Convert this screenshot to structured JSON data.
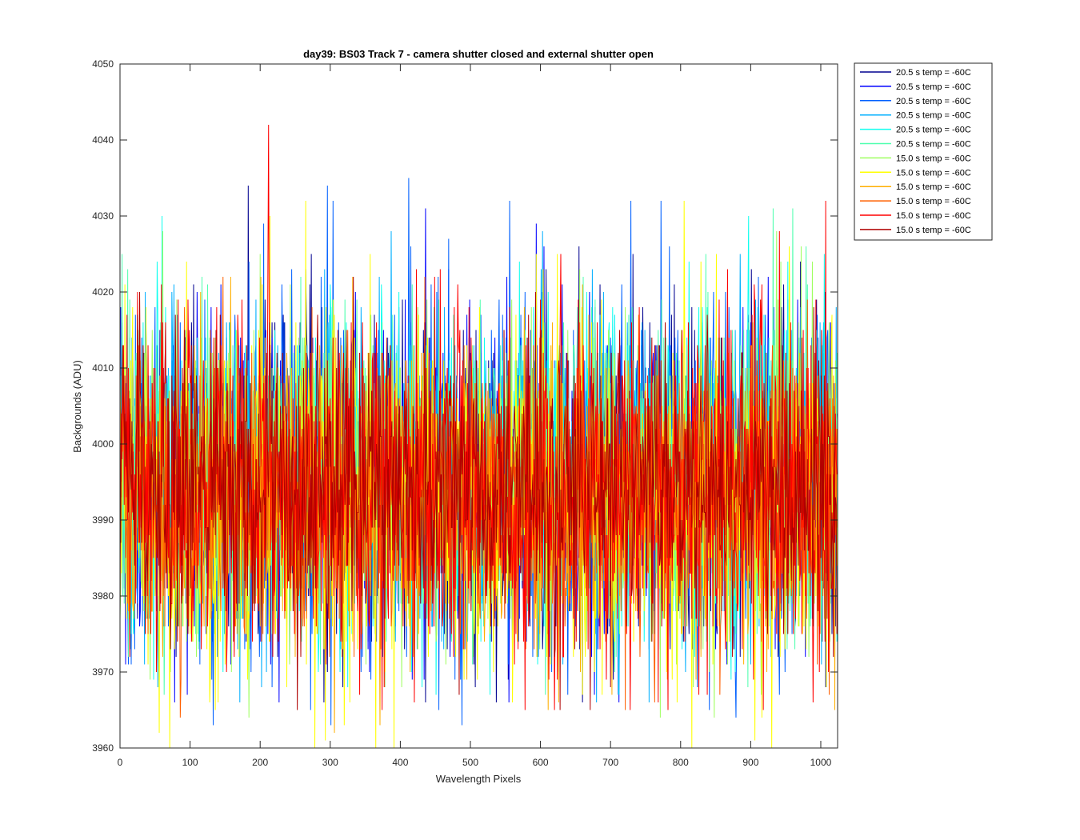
{
  "chart_data": {
    "type": "line",
    "title": "day39: BS03  Track 7 - camera shutter closed and external shutter open",
    "xlabel": "Wavelength Pixels",
    "ylabel": "Backgrounds (ADU)",
    "xlim": [
      0,
      1024
    ],
    "ylim": [
      3960,
      4050
    ],
    "xticks": [
      0,
      100,
      200,
      300,
      400,
      500,
      600,
      700,
      800,
      900,
      1000
    ],
    "yticks": [
      3960,
      3970,
      3980,
      3990,
      4000,
      4010,
      4020,
      4030,
      4040,
      4050
    ],
    "xtick_labels": [
      "0",
      "100",
      "200",
      "300",
      "400",
      "500",
      "600",
      "700",
      "800",
      "900",
      "1000"
    ],
    "ytick_labels": [
      "3960",
      "3970",
      "3980",
      "3990",
      "4000",
      "4010",
      "4020",
      "4030",
      "4040",
      "4050"
    ],
    "grid": false,
    "legend_position": "outside-top-right",
    "x_range": [
      0,
      1023
    ],
    "series": [
      {
        "name": "20.5 s temp = -60C",
        "color": "#00008F",
        "mean": 3995,
        "range": [
          3966,
          4034
        ],
        "peaks": [
          [
            183,
            4034
          ]
        ]
      },
      {
        "name": "20.5 s temp = -60C",
        "color": "#0000FF",
        "mean": 3995,
        "range": [
          3966,
          4031
        ],
        "peaks": [
          [
            436,
            4031
          ]
        ]
      },
      {
        "name": "20.5 s temp = -60C",
        "color": "#0060FF",
        "mean": 3995,
        "range": [
          3963,
          4035
        ],
        "peaks": [
          [
            412,
            4035
          ],
          [
            556,
            4032
          ],
          [
            133,
            3963
          ]
        ]
      },
      {
        "name": "20.5 s temp = -60C",
        "color": "#00AFFF",
        "mean": 3996,
        "range": [
          3966,
          4028
        ],
        "peaks": [
          [
            755,
            3966
          ]
        ]
      },
      {
        "name": "20.5 s temp = -60C",
        "color": "#10FFEF",
        "mean": 3996,
        "range": [
          3967,
          4030
        ],
        "peaks": [
          [
            60,
            4030
          ],
          [
            897,
            4030
          ]
        ]
      },
      {
        "name": "20.5 s temp = -60C",
        "color": "#50FFAF",
        "mean": 3996,
        "range": [
          3967,
          4031
        ],
        "peaks": [
          [
            932,
            4031
          ],
          [
            960,
            4031
          ]
        ]
      },
      {
        "name": "15.0 s temp = -60C",
        "color": "#9FFF60",
        "mean": 3994,
        "range": [
          3964,
          4028
        ],
        "peaks": [
          [
            848,
            3964
          ]
        ]
      },
      {
        "name": "15.0 s temp = -60C",
        "color": "#FFFF00",
        "mean": 3993,
        "range": [
          3960,
          4032
        ],
        "peaks": [
          [
            265,
            4032
          ],
          [
            365,
            3960
          ],
          [
            56,
            3962
          ]
        ]
      },
      {
        "name": "15.0 s temp = -60C",
        "color": "#FFAF00",
        "mean": 3993,
        "range": [
          3962,
          4022
        ],
        "peaks": [
          [
            1020,
            3965
          ]
        ]
      },
      {
        "name": "15.0 s temp = -60C",
        "color": "#FF6000",
        "mean": 3993,
        "range": [
          3964,
          4022
        ],
        "peaks": [
          [
            86,
            3964
          ]
        ]
      },
      {
        "name": "15.0 s temp = -60C",
        "color": "#FF0000",
        "mean": 3994,
        "range": [
          3965,
          4042
        ],
        "peaks": [
          [
            212,
            4042
          ]
        ]
      },
      {
        "name": "15.0 s temp = -60C",
        "color": "#AF0000",
        "mean": 3994,
        "range": [
          3965,
          4023
        ],
        "peaks": [
          [
            628,
            3965
          ]
        ]
      }
    ]
  }
}
